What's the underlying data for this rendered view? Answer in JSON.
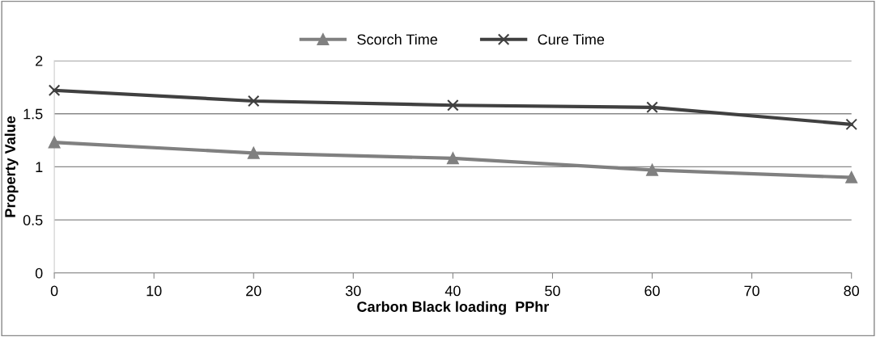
{
  "chart_data": {
    "type": "line",
    "xlabel": "Carbon Black loading  PPhr",
    "ylabel": "Property Value",
    "x": [
      0,
      20,
      40,
      60,
      80
    ],
    "series": [
      {
        "name": "Scorch Time",
        "color": "#808080",
        "marker": "triangle",
        "values": [
          1.23,
          1.13,
          1.08,
          0.97,
          0.9
        ]
      },
      {
        "name": "Cure Time",
        "color": "#404040",
        "marker": "cross",
        "values": [
          1.72,
          1.62,
          1.58,
          1.56,
          1.4
        ]
      }
    ],
    "xlim": [
      0,
      80
    ],
    "xticks": [
      0,
      10,
      20,
      30,
      40,
      50,
      60,
      70,
      80
    ],
    "ylim": [
      0,
      2
    ],
    "yticks": [
      0,
      0.5,
      1,
      1.5,
      2
    ],
    "grid": "y",
    "legend": "top",
    "line_style": "solid"
  }
}
